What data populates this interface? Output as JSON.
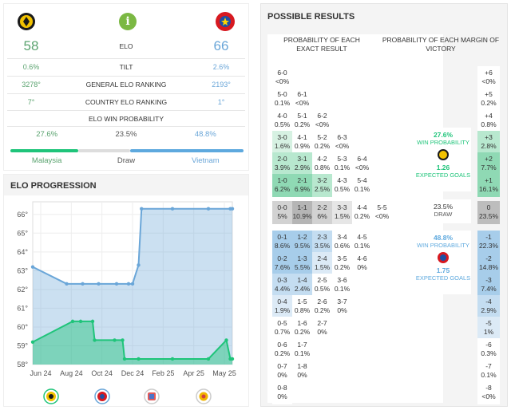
{
  "elo": {
    "info_icon": "i",
    "team_left": {
      "elo": "58",
      "tilt": "0.6%",
      "general_rank": "3278°",
      "country_rank": "7°",
      "win_prob": "27.6%",
      "name": "Malaysia",
      "color": "#1fc47a"
    },
    "team_right": {
      "elo": "66",
      "tilt": "2.6%",
      "general_rank": "2193°",
      "country_rank": "1°",
      "win_prob": "48.8%",
      "name": "Vietnam",
      "color": "#5ea9de"
    },
    "labels": {
      "elo": "ELO",
      "tilt": "TILT",
      "general_rank": "GENERAL ELO RANKING",
      "country_rank": "COUNTRY ELO RANKING",
      "win_prob": "ELO WIN PROBABILITY"
    },
    "draw": {
      "prob": "23.5%",
      "label": "Draw"
    }
  },
  "progression": {
    "title": "ELO PROGRESSION",
    "chart_data": {
      "type": "line",
      "ylim": [
        58,
        66.5
      ],
      "yticks": [
        "66°",
        "65°",
        "64°",
        "63°",
        "62°",
        "61°",
        "60°",
        "59°",
        "58°"
      ],
      "xticks": [
        "Jun 24",
        "Aug 24",
        "Oct 24",
        "Dec 24",
        "Feb 25",
        "Apr 25",
        "May 25"
      ],
      "series": [
        {
          "name": "Vietnam",
          "color": "#6aa6d8",
          "values": [
            [
              0,
              63.2
            ],
            [
              0.17,
              62.3
            ],
            [
              0.25,
              62.3
            ],
            [
              0.33,
              62.3
            ],
            [
              0.42,
              62.3
            ],
            [
              0.48,
              62.3
            ],
            [
              0.5,
              62.3
            ],
            [
              0.53,
              63.3
            ],
            [
              0.545,
              66.3
            ],
            [
              0.7,
              66.3
            ],
            [
              0.88,
              66.3
            ],
            [
              0.99,
              66.3
            ],
            [
              1,
              66.3
            ]
          ]
        },
        {
          "name": "Malaysia",
          "color": "#1fc47a",
          "values": [
            [
              0,
              59.2
            ],
            [
              0.2,
              60.3
            ],
            [
              0.24,
              60.3
            ],
            [
              0.3,
              60.3
            ],
            [
              0.31,
              59.3
            ],
            [
              0.41,
              59.3
            ],
            [
              0.45,
              59.3
            ],
            [
              0.46,
              58.3
            ],
            [
              0.53,
              58.3
            ],
            [
              0.7,
              58.3
            ],
            [
              0.88,
              58.3
            ],
            [
              0.97,
              59.3
            ],
            [
              0.99,
              58.3
            ],
            [
              1,
              58.3
            ]
          ]
        }
      ]
    }
  },
  "results": {
    "title": "POSSIBLE RESULTS",
    "head_exact": "PROBABILITY OF EACH EXACT RESULT",
    "head_margin": "PROBABILITY OF EACH MARGIN OF VICTORY",
    "home_win": {
      "prob": "27.6%",
      "label": "WIN PROBABILITY",
      "goals": "1.26",
      "goals_label": "EXPECTED GOALS"
    },
    "draw": {
      "prob": "23.5%",
      "label": "DRAW"
    },
    "away_win": {
      "prob": "48.8%",
      "label": "WIN PROBABILITY",
      "goals": "1.75",
      "goals_label": "EXPECTED GOALS"
    },
    "home_scores": [
      [
        "6-0",
        "<0%"
      ],
      [
        "5-0",
        "0.1%",
        "6-1",
        "<0%"
      ],
      [
        "4-0",
        "0.5%",
        "5-1",
        "0.2%",
        "6-2",
        "<0%"
      ],
      [
        "3-0",
        "1.6%",
        "4-1",
        "0.9%",
        "5-2",
        "0.2%",
        "6-3",
        "<0%"
      ],
      [
        "2-0",
        "3.9%",
        "3-1",
        "2.9%",
        "4-2",
        "0.8%",
        "5-3",
        "0.1%",
        "6-4",
        "<0%"
      ],
      [
        "1-0",
        "6.2%",
        "2-1",
        "6.9%",
        "3-2",
        "2.5%",
        "4-3",
        "0.5%",
        "5-4",
        "0.1%"
      ]
    ],
    "draws": [
      [
        "0-0",
        "5%"
      ],
      [
        "1-1",
        "10.9%"
      ],
      [
        "2-2",
        "6%"
      ],
      [
        "3-3",
        "1.5%"
      ],
      [
        "4-4",
        "0.2%"
      ],
      [
        "5-5",
        "<0%"
      ]
    ],
    "away_scores": [
      [
        "0-1",
        "8.6%",
        "1-2",
        "9.5%",
        "2-3",
        "3.5%",
        "3-4",
        "0.6%",
        "4-5",
        "0.1%"
      ],
      [
        "0-2",
        "7.6%",
        "1-3",
        "5.5%",
        "2-4",
        "1.5%",
        "3-5",
        "0.2%",
        "4-6",
        "0%"
      ],
      [
        "0-3",
        "4.4%",
        "1-4",
        "2.4%",
        "2-5",
        "0.5%",
        "3-6",
        "0.1%"
      ],
      [
        "0-4",
        "1.9%",
        "1-5",
        "0.8%",
        "2-6",
        "0.2%",
        "3-7",
        "0%"
      ],
      [
        "0-5",
        "0.7%",
        "1-6",
        "0.2%",
        "2-7",
        "0%"
      ],
      [
        "0-6",
        "0.2%",
        "1-7",
        "0.1%"
      ],
      [
        "0-7",
        "0%",
        "1-8",
        "0%"
      ],
      [
        "0-8",
        "0%"
      ]
    ],
    "margins_home": [
      [
        "+6",
        "<0%"
      ],
      [
        "+5",
        "0.2%"
      ],
      [
        "+4",
        "0.8%"
      ],
      [
        "+3",
        "2.8%"
      ],
      [
        "+2",
        "7.7%"
      ],
      [
        "+1",
        "16.1%"
      ]
    ],
    "margin_draw": [
      "0",
      "23.5%"
    ],
    "margins_away": [
      [
        "-1",
        "22.3%"
      ],
      [
        "-2",
        "14.8%"
      ],
      [
        "-3",
        "7.4%"
      ],
      [
        "-4",
        "2.9%"
      ],
      [
        "-5",
        "1%"
      ],
      [
        "-6",
        "0.3%"
      ],
      [
        "-7",
        "0.1%"
      ],
      [
        "-8",
        "<0%"
      ]
    ]
  }
}
